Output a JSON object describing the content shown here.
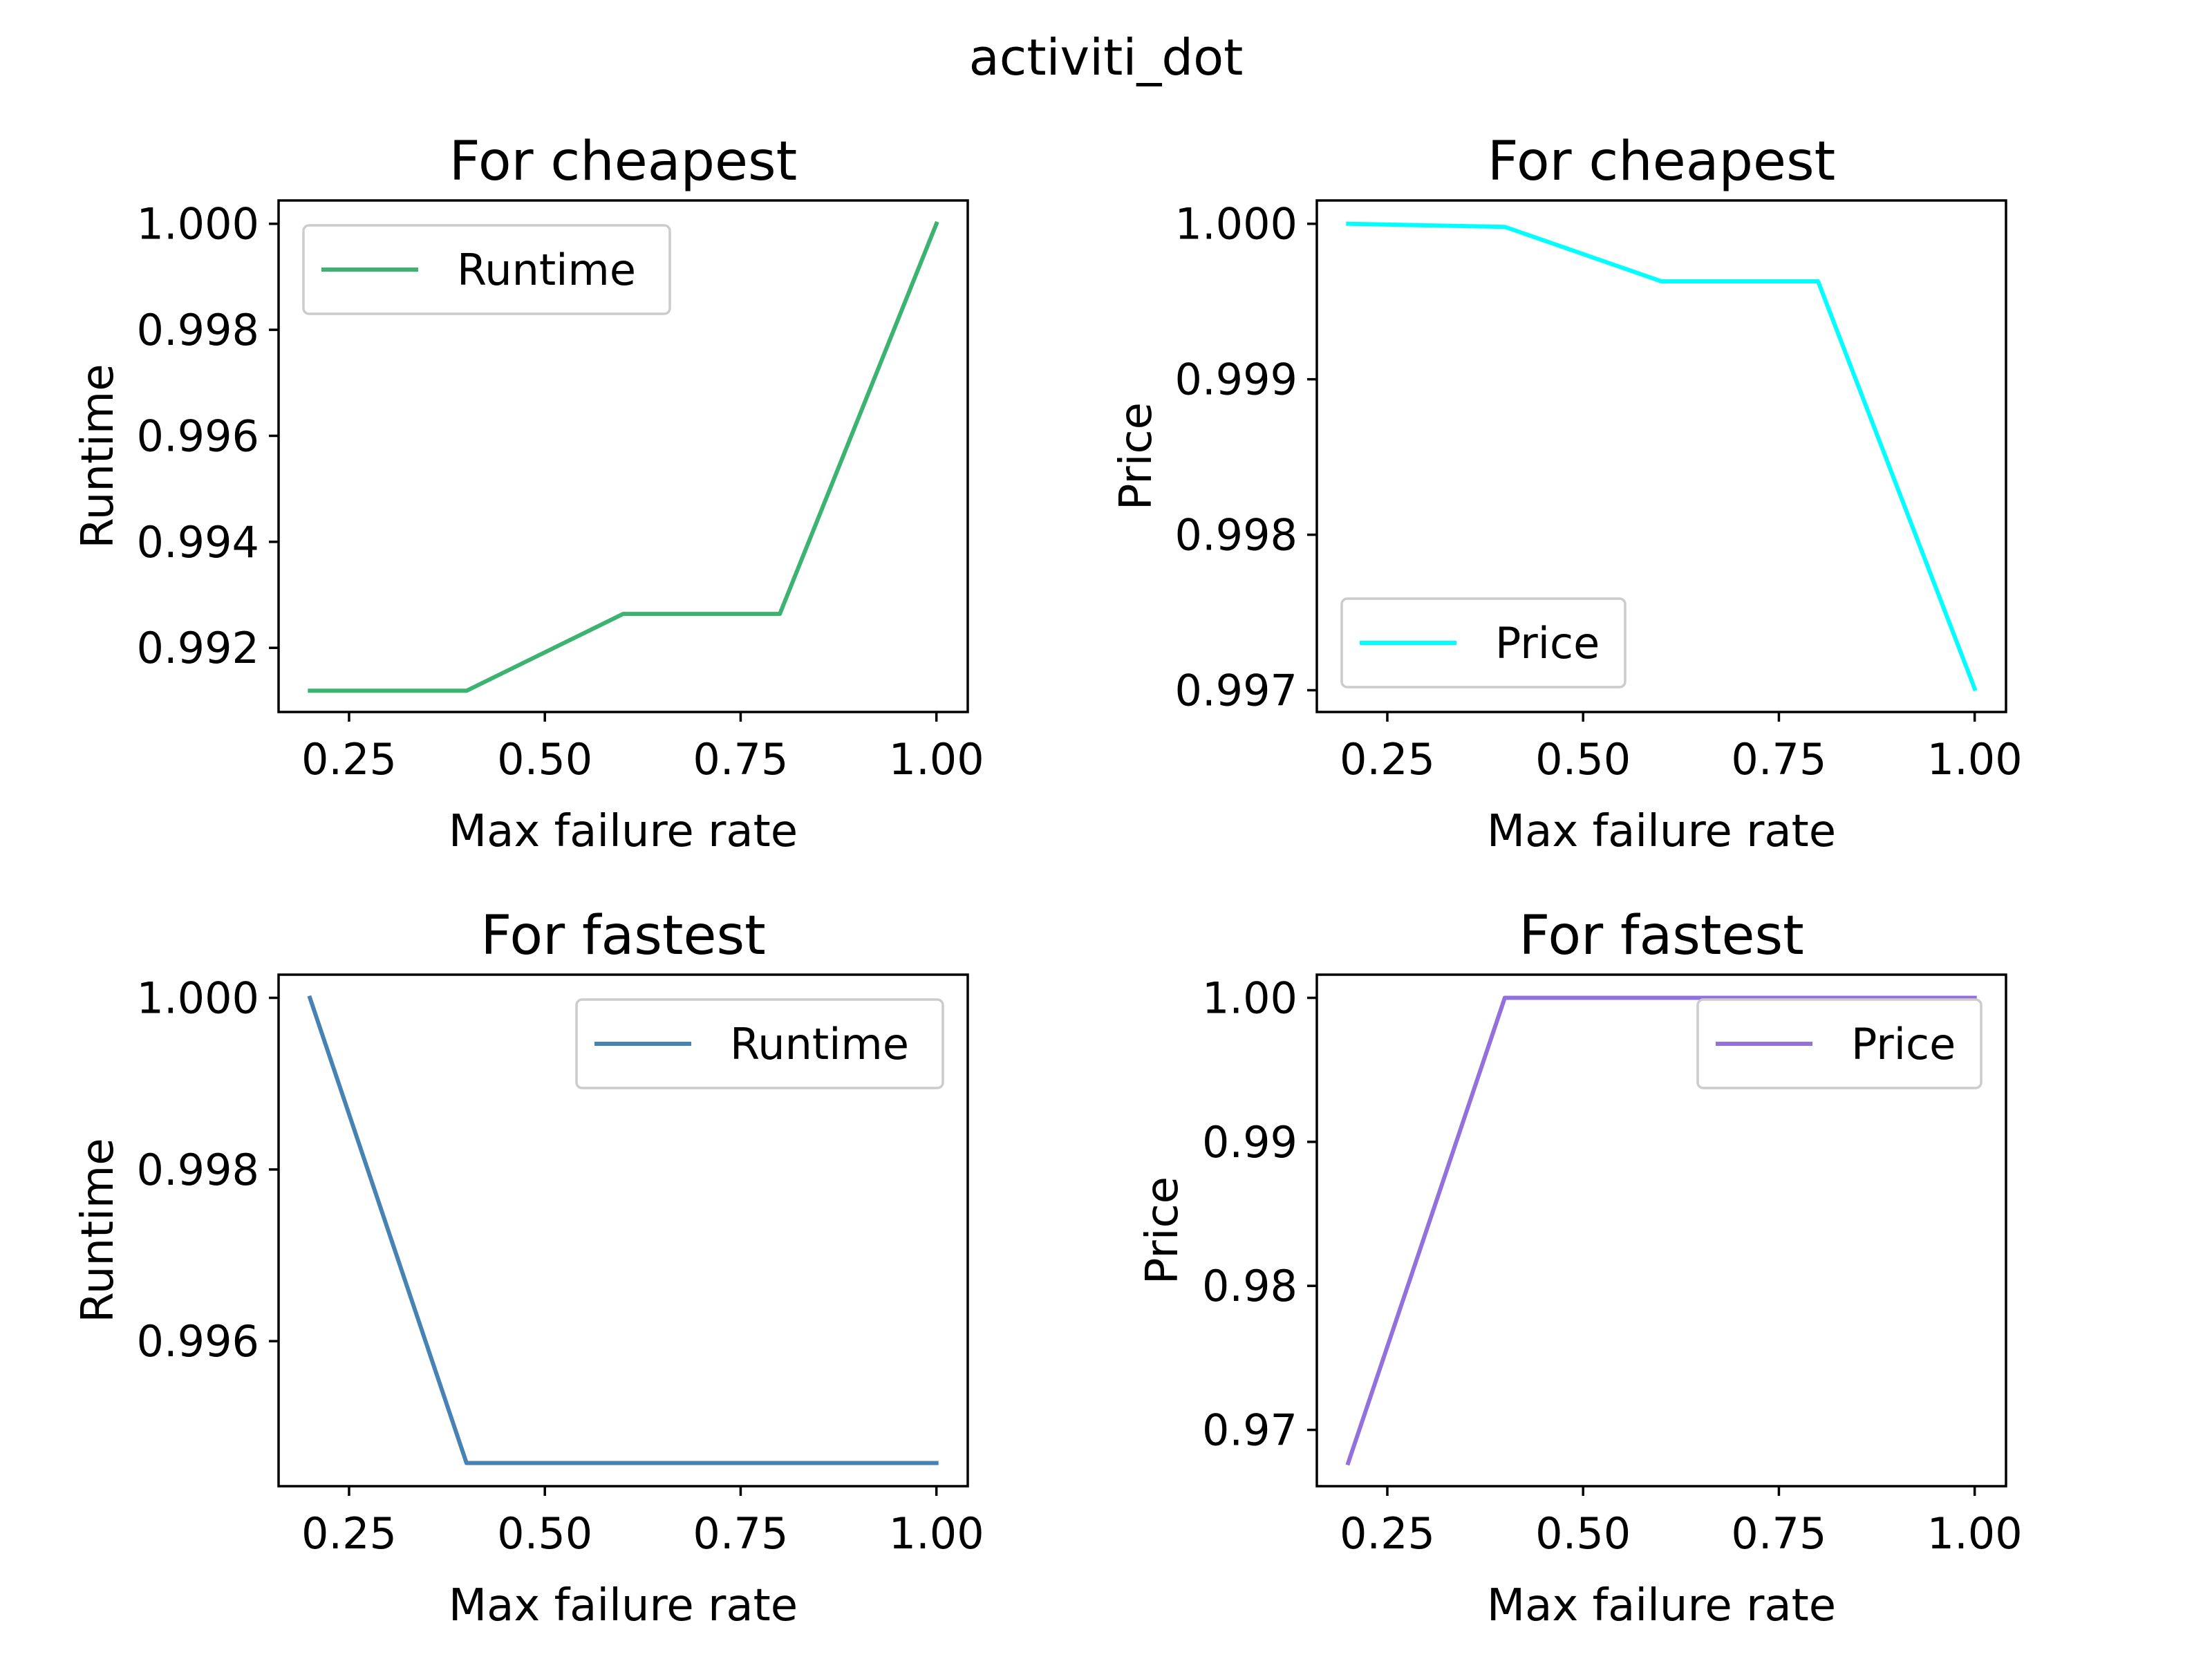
{
  "suptitle": "activiti_dot",
  "chart_data": [
    {
      "type": "line",
      "title": "For cheapest",
      "xlabel": "Max failure rate",
      "ylabel": "Runtime",
      "x": [
        0.2,
        0.4,
        0.6,
        0.8,
        1.0
      ],
      "series": [
        {
          "name": "Runtime",
          "color": "#3cb371",
          "values": [
            0.99119,
            0.99119,
            0.99264,
            0.99264,
            1.0
          ]
        }
      ],
      "xlim": [
        0.16,
        1.04
      ],
      "ylim": [
        0.99079,
        1.00044
      ],
      "xticks": [
        0.25,
        0.5,
        0.75,
        1.0
      ],
      "xtick_labels": [
        "0.25",
        "0.50",
        "0.75",
        "1.00"
      ],
      "yticks": [
        0.992,
        0.994,
        0.996,
        0.998,
        1.0
      ],
      "ytick_labels": [
        "0.992",
        "0.994",
        "0.996",
        "0.998",
        "1.000"
      ],
      "legend_loc": "upper-left"
    },
    {
      "type": "line",
      "title": "For cheapest",
      "xlabel": "Max failure rate",
      "ylabel": "Price",
      "x": [
        0.2,
        0.4,
        0.6,
        0.8,
        1.0
      ],
      "series": [
        {
          "name": "Price",
          "color": "#00ffff",
          "values": [
            1.0,
            0.99998,
            0.99963,
            0.99963,
            0.99701
          ]
        }
      ],
      "xlim": [
        0.16,
        1.04
      ],
      "ylim": [
        0.99686,
        1.00015
      ],
      "xticks": [
        0.25,
        0.5,
        0.75,
        1.0
      ],
      "xtick_labels": [
        "0.25",
        "0.50",
        "0.75",
        "1.00"
      ],
      "yticks": [
        0.997,
        0.998,
        0.999,
        1.0
      ],
      "ytick_labels": [
        "0.997",
        "0.998",
        "0.999",
        "1.000"
      ],
      "legend_loc": "lower-left"
    },
    {
      "type": "line",
      "title": "For fastest",
      "xlabel": "Max failure rate",
      "ylabel": "Runtime",
      "x": [
        0.2,
        0.4,
        0.6,
        0.8,
        1.0
      ],
      "series": [
        {
          "name": "Runtime",
          "color": "#4682b4",
          "values": [
            1.0,
            0.99458,
            0.99458,
            0.99458,
            0.99458
          ]
        }
      ],
      "xlim": [
        0.16,
        1.04
      ],
      "ylim": [
        0.99431,
        1.00027
      ],
      "xticks": [
        0.25,
        0.5,
        0.75,
        1.0
      ],
      "xtick_labels": [
        "0.25",
        "0.50",
        "0.75",
        "1.00"
      ],
      "yticks": [
        0.996,
        0.998,
        1.0
      ],
      "ytick_labels": [
        "0.996",
        "0.998",
        "1.000"
      ],
      "legend_loc": "upper-right"
    },
    {
      "type": "line",
      "title": "For fastest",
      "xlabel": "Max failure rate",
      "ylabel": "Price",
      "x": [
        0.2,
        0.4,
        0.6,
        0.8,
        1.0
      ],
      "series": [
        {
          "name": "Price",
          "color": "#9370db",
          "values": [
            0.9677,
            1.0,
            1.0,
            1.0,
            1.0
          ]
        }
      ],
      "xlim": [
        0.16,
        1.04
      ],
      "ylim": [
        0.96609,
        1.00161
      ],
      "xticks": [
        0.25,
        0.5,
        0.75,
        1.0
      ],
      "xtick_labels": [
        "0.25",
        "0.50",
        "0.75",
        "1.00"
      ],
      "yticks": [
        0.97,
        0.98,
        0.99,
        1.0
      ],
      "ytick_labels": [
        "0.97",
        "0.98",
        "0.99",
        "1.00"
      ],
      "legend_loc": "upper-right"
    }
  ]
}
